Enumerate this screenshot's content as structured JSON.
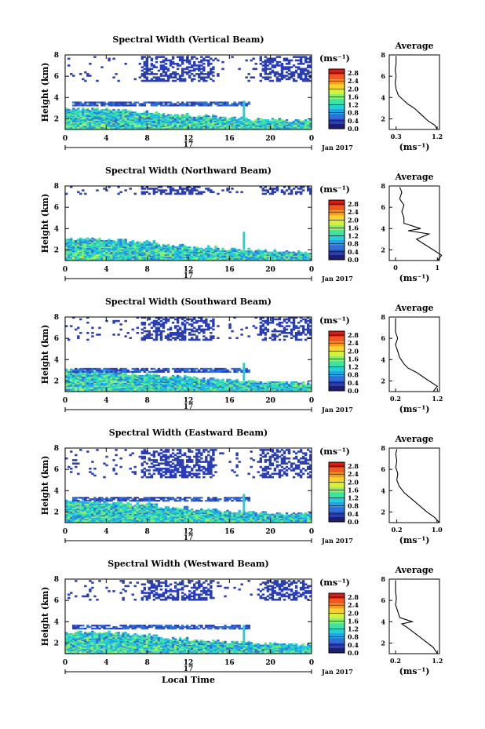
{
  "chart_data": [
    {
      "type": "heatmap",
      "title": "Spectral Width (Vertical Beam)",
      "ylabel": "Height (km)",
      "x_ticks": [
        "0",
        "4",
        "8",
        "12",
        "16",
        "20",
        "0"
      ],
      "ylim": [
        1,
        8
      ],
      "y_ticks": [
        "2",
        "4",
        "6",
        "8"
      ],
      "colorbar": {
        "unit": "(ms⁻¹)",
        "ticks": [
          "0.0",
          "0.4",
          "0.8",
          "1.2",
          "1.6",
          "2.0",
          "2.4",
          "2.8"
        ],
        "range": [
          0,
          3.0
        ]
      },
      "date_label": "17",
      "month_label": "Jan 2017",
      "echo_layers": {
        "boundary_layer_top_km": [
          2.9,
          2.8,
          2.6,
          2.4,
          2.2,
          2.0,
          1.9,
          1.8
        ],
        "cloud_layer_km": [
          3.2,
          3.5
        ],
        "upper_scatter_km": [
          5.5,
          7.8
        ]
      },
      "average": {
        "title": "Average",
        "x_ticks": [
          "0.3",
          "1.2"
        ],
        "xlabel": "(ms⁻¹)",
        "y_ticks": [
          "2",
          "4",
          "6",
          "8"
        ],
        "profile": [
          [
            1.2,
            1.0
          ],
          [
            1.15,
            1.4
          ],
          [
            1.0,
            1.8
          ],
          [
            0.9,
            2.2
          ],
          [
            0.8,
            2.6
          ],
          [
            0.7,
            3.0
          ],
          [
            0.55,
            3.4
          ],
          [
            0.45,
            3.8
          ],
          [
            0.35,
            4.2
          ],
          [
            0.3,
            4.8
          ],
          [
            0.28,
            5.4
          ],
          [
            0.3,
            6.0
          ],
          [
            0.28,
            6.6
          ],
          [
            0.3,
            7.2
          ],
          [
            0.3,
            7.9
          ]
        ]
      }
    },
    {
      "type": "heatmap",
      "title": "Spectral Width (Northward Beam)",
      "ylabel": "Height (km)",
      "x_ticks": [
        "0",
        "4",
        "8",
        "12",
        "16",
        "20",
        "0"
      ],
      "ylim": [
        1,
        8
      ],
      "y_ticks": [
        "2",
        "4",
        "6",
        "8"
      ],
      "colorbar": {
        "unit": "(ms⁻¹)",
        "ticks": [
          "0.0",
          "0.4",
          "0.8",
          "1.2",
          "1.6",
          "2.0",
          "2.4",
          "2.8"
        ],
        "range": [
          0,
          3.0
        ]
      },
      "date_label": "17",
      "month_label": "Jan 2017",
      "echo_layers": {
        "boundary_layer_top_km": [
          3.0,
          2.9,
          2.7,
          2.4,
          2.2,
          2.0,
          1.9,
          1.8
        ],
        "cloud_layer_km": [],
        "upper_scatter_km": [
          7.2,
          7.9
        ]
      },
      "average": {
        "title": "Average",
        "x_ticks": [
          "0",
          "1"
        ],
        "xlabel": "(ms⁻¹)",
        "y_ticks": [
          "2",
          "4",
          "6",
          "8"
        ],
        "profile": [
          [
            1.0,
            1.0
          ],
          [
            1.1,
            1.5
          ],
          [
            0.9,
            2.0
          ],
          [
            0.7,
            2.5
          ],
          [
            0.5,
            3.0
          ],
          [
            0.8,
            3.5
          ],
          [
            0.3,
            3.8
          ],
          [
            0.6,
            4.0
          ],
          [
            0.2,
            4.5
          ],
          [
            0.2,
            5.0
          ],
          [
            0.15,
            5.6
          ],
          [
            0.2,
            6.2
          ],
          [
            0.1,
            6.8
          ],
          [
            0.15,
            7.4
          ],
          [
            0.1,
            7.9
          ]
        ]
      }
    },
    {
      "type": "heatmap",
      "title": "Spectral Width (Southward Beam)",
      "ylabel": "Height (km)",
      "x_ticks": [
        "0",
        "4",
        "8",
        "12",
        "16",
        "20",
        "0"
      ],
      "ylim": [
        1,
        8
      ],
      "y_ticks": [
        "2",
        "4",
        "6",
        "8"
      ],
      "colorbar": {
        "unit": "(ms⁻¹)",
        "ticks": [
          "0.0",
          "0.4",
          "0.8",
          "1.2",
          "1.6",
          "2.0",
          "2.4",
          "2.8"
        ],
        "range": [
          0,
          3.0
        ]
      },
      "date_label": "17",
      "month_label": "Jan 2017",
      "echo_layers": {
        "boundary_layer_top_km": [
          3.0,
          2.9,
          2.6,
          2.4,
          2.2,
          2.0,
          1.9,
          1.8
        ],
        "cloud_layer_km": [
          2.8,
          3.2
        ],
        "upper_scatter_km": [
          5.8,
          7.9
        ]
      },
      "average": {
        "title": "Average",
        "x_ticks": [
          "0.2",
          "1.2"
        ],
        "xlabel": "(ms⁻¹)",
        "y_ticks": [
          "2",
          "4",
          "6",
          "8"
        ],
        "profile": [
          [
            1.1,
            1.0
          ],
          [
            1.2,
            1.5
          ],
          [
            1.0,
            2.0
          ],
          [
            0.85,
            2.4
          ],
          [
            0.7,
            2.8
          ],
          [
            0.5,
            3.2
          ],
          [
            0.4,
            3.6
          ],
          [
            0.3,
            4.2
          ],
          [
            0.25,
            4.8
          ],
          [
            0.2,
            5.4
          ],
          [
            0.25,
            6.0
          ],
          [
            0.2,
            6.6
          ],
          [
            0.2,
            7.2
          ],
          [
            0.2,
            7.9
          ]
        ]
      }
    },
    {
      "type": "heatmap",
      "title": "Spectral Width (Eastward Beam)",
      "ylabel": "Height (km)",
      "x_ticks": [
        "0",
        "4",
        "8",
        "12",
        "16",
        "20",
        "0"
      ],
      "ylim": [
        1,
        8
      ],
      "y_ticks": [
        "2",
        "4",
        "6",
        "8"
      ],
      "colorbar": {
        "unit": "(ms⁻¹)",
        "ticks": [
          "0.0",
          "0.4",
          "0.8",
          "1.2",
          "1.6",
          "2.0",
          "2.4",
          "2.8"
        ],
        "range": [
          0,
          3.0
        ]
      },
      "date_label": "17",
      "month_label": "Jan 2017",
      "echo_layers": {
        "boundary_layer_top_km": [
          3.0,
          2.9,
          2.7,
          2.4,
          2.2,
          2.0,
          1.9,
          1.8
        ],
        "cloud_layer_km": [
          3.0,
          3.4
        ],
        "upper_scatter_km": [
          5.2,
          7.9
        ]
      },
      "average": {
        "title": "Average",
        "x_ticks": [
          "0.2",
          "1.0"
        ],
        "xlabel": "(ms⁻¹)",
        "y_ticks": [
          "2",
          "4",
          "6",
          "8"
        ],
        "profile": [
          [
            1.05,
            1.0
          ],
          [
            0.95,
            1.5
          ],
          [
            0.8,
            2.0
          ],
          [
            0.65,
            2.6
          ],
          [
            0.5,
            3.2
          ],
          [
            0.35,
            3.8
          ],
          [
            0.25,
            4.4
          ],
          [
            0.2,
            5.0
          ],
          [
            0.22,
            5.6
          ],
          [
            0.18,
            6.2
          ],
          [
            0.2,
            6.8
          ],
          [
            0.18,
            7.4
          ],
          [
            0.2,
            7.9
          ]
        ]
      }
    },
    {
      "type": "heatmap",
      "title": "Spectral Width (Westward Beam)",
      "ylabel": "Height (km)",
      "x_ticks": [
        "0",
        "4",
        "8",
        "12",
        "16",
        "20",
        "0"
      ],
      "ylim": [
        1,
        8
      ],
      "y_ticks": [
        "2",
        "4",
        "6",
        "8"
      ],
      "colorbar": {
        "unit": "(ms⁻¹)",
        "ticks": [
          "0.0",
          "0.4",
          "0.8",
          "1.2",
          "1.6",
          "2.0",
          "2.4",
          "2.8"
        ],
        "range": [
          0,
          3.0
        ]
      },
      "date_label": "17",
      "month_label": "Jan 2017",
      "xlabel": "Local Time",
      "echo_layers": {
        "boundary_layer_top_km": [
          3.0,
          2.9,
          2.7,
          2.4,
          2.2,
          2.0,
          1.9,
          1.8
        ],
        "cloud_layer_km": [
          3.3,
          3.7
        ],
        "upper_scatter_km": [
          6.0,
          7.9
        ]
      },
      "average": {
        "title": "Average",
        "x_ticks": [
          "0.2",
          "1.2"
        ],
        "xlabel": "(ms⁻¹)",
        "y_ticks": [
          "2",
          "4",
          "6",
          "8"
        ],
        "profile": [
          [
            1.2,
            1.0
          ],
          [
            1.1,
            1.6
          ],
          [
            0.9,
            2.2
          ],
          [
            0.7,
            2.8
          ],
          [
            0.5,
            3.4
          ],
          [
            0.35,
            3.8
          ],
          [
            0.6,
            4.0
          ],
          [
            0.3,
            4.4
          ],
          [
            0.25,
            5.0
          ],
          [
            0.2,
            5.6
          ],
          [
            0.22,
            6.2
          ],
          [
            0.2,
            6.8
          ],
          [
            0.2,
            7.4
          ],
          [
            0.2,
            7.9
          ]
        ]
      }
    }
  ],
  "colormap": [
    "#1e1e6e",
    "#2b3fb4",
    "#2f6fd8",
    "#22a4e8",
    "#23d0d6",
    "#3fe3a0",
    "#8ef06a",
    "#d6f03e",
    "#fbd22c",
    "#fb9a22",
    "#f05820",
    "#d81e14"
  ]
}
